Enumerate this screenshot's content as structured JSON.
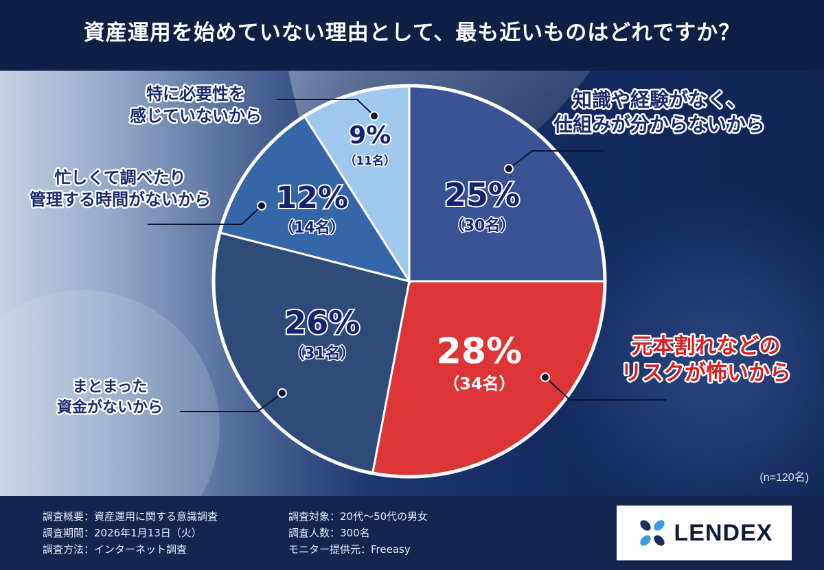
{
  "header": {
    "title": "資産運用を始めていない理由として、最も近いものはどれですか？"
  },
  "chart_data": {
    "type": "pie",
    "title": "資産運用を始めていない理由として、最も近いものはどれですか？",
    "sample_note": "(n=120名)",
    "start": "12 o'clock, clockwise",
    "slices": [
      {
        "label_lines": [
          "知識や経験がなく、",
          "仕組みが分からないから"
        ],
        "percent": 25,
        "pct_text": "25%",
        "count_text": "（30名）",
        "color": "#3a5395",
        "label_color": "#1d2a6e"
      },
      {
        "label_lines": [
          "元本割れなどの",
          "リスクが怖いから"
        ],
        "percent": 28,
        "pct_text": "28%",
        "count_text": "（34名）",
        "color": "#dd3535",
        "label_color": "#d81e1e"
      },
      {
        "label_lines": [
          "まとまった",
          "資金がないから"
        ],
        "percent": 26,
        "pct_text": "26%",
        "count_text": "（31名）",
        "color": "#2e4b7a",
        "label_color": "#1d2a6e"
      },
      {
        "label_lines": [
          "忙しくて調べたり",
          "管理する時間がないから"
        ],
        "percent": 12,
        "pct_text": "12%",
        "count_text": "（14名）",
        "color": "#3566a8",
        "label_color": "#1d2a6e"
      },
      {
        "label_lines": [
          "特に必要性を",
          "感じていないから"
        ],
        "percent": 9,
        "pct_text": "9%",
        "count_text": "（11名）",
        "color": "#9fc9ee",
        "label_color": "#1d2a6e"
      }
    ],
    "value_text_color": "#16226e",
    "value_text_color_highlight": "#ffffff"
  },
  "footer": {
    "left": [
      "調査概要：資産運用に関する意識調査",
      "調査期間：2026年1月13日（火）",
      "調査方法：インターネット調査"
    ],
    "right": [
      "調査対象：20代〜50代の男女",
      "調査人数：300名",
      "モニター提供元：Freeasy"
    ]
  },
  "logo": {
    "text": "LENDEX"
  }
}
